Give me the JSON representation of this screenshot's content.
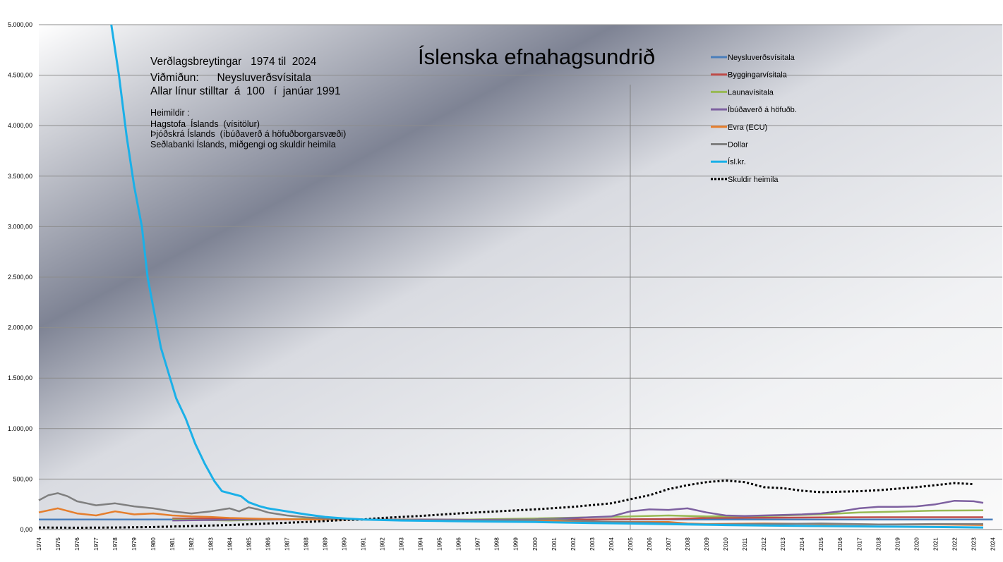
{
  "chart_data": {
    "type": "line",
    "title": "Íslenska efnahagsundrið",
    "info_lines": [
      "Verðlagsbreytingar   1974 til  2024",
      "Viðmiðun:      Neysluverðsvísitala",
      "Allar línur stilltar  á  100   í  janúar 1991"
    ],
    "sources": [
      "Heimildir :",
      "Hagstofa  Íslands  (vísitölur)",
      "Þjóðskrá Íslands  (íbúðaverð á höfuðborgarsvæði)",
      "Seðlabanki Íslands, miðgengi og skuldir heimila"
    ],
    "ylim": [
      0,
      5000
    ],
    "yticks": [
      "0,00",
      "500,00",
      "1.000,00",
      "1.500,00",
      "2.000,00",
      "2.500,00",
      "3.000,00",
      "3.500,00",
      "4.000,00",
      "4.500,00",
      "5.000,00"
    ],
    "xlim": [
      1974,
      2024.5
    ],
    "xticks": [
      "1974",
      "1975",
      "1976",
      "1977",
      "1978",
      "1979",
      "1980",
      "1981",
      "1982",
      "1983",
      "1984",
      "1985",
      "1986",
      "1987",
      "1988",
      "1989",
      "1990",
      "1991",
      "1992",
      "1993",
      "1994",
      "1995",
      "1996",
      "1997",
      "1998",
      "1999",
      "2000",
      "2001",
      "2002",
      "2003",
      "2004",
      "2005",
      "2006",
      "2007",
      "2008",
      "2009",
      "2010",
      "2011",
      "2012",
      "2013",
      "2014",
      "2015",
      "2016",
      "2017",
      "2018",
      "2019",
      "2020",
      "2021",
      "2022",
      "2023",
      "2024"
    ],
    "marker_line_x": 2005,
    "series": [
      {
        "name": "Neysluverðsvísitala",
        "color": "#4a7ebb",
        "style": "solid",
        "points": [
          [
            1974,
            100
          ],
          [
            2024,
            100
          ]
        ]
      },
      {
        "name": "Byggingarvísitala",
        "color": "#be4b48",
        "style": "solid",
        "points": [
          [
            1981,
            110
          ],
          [
            1985,
            105
          ],
          [
            1990,
            100
          ],
          [
            1995,
            98
          ],
          [
            2000,
            97
          ],
          [
            2005,
            102
          ],
          [
            2007,
            105
          ],
          [
            2009,
            115
          ],
          [
            2012,
            118
          ],
          [
            2015,
            120
          ],
          [
            2018,
            122
          ],
          [
            2021,
            122
          ],
          [
            2023.5,
            122
          ]
        ]
      },
      {
        "name": "Launavísitala",
        "color": "#98b954",
        "style": "solid",
        "points": [
          [
            1981,
            100
          ],
          [
            1984,
            90
          ],
          [
            1988,
            105
          ],
          [
            1991,
            100
          ],
          [
            1995,
            95
          ],
          [
            2000,
            110
          ],
          [
            2005,
            130
          ],
          [
            2007,
            140
          ],
          [
            2009,
            130
          ],
          [
            2012,
            135
          ],
          [
            2015,
            150
          ],
          [
            2017,
            170
          ],
          [
            2019,
            178
          ],
          [
            2021,
            188
          ],
          [
            2023.5,
            190
          ]
        ]
      },
      {
        "name": "Íbúðaverð á höfuðb.",
        "color": "#7d60a0",
        "style": "solid",
        "points": [
          [
            1981,
            90
          ],
          [
            1985,
            100
          ],
          [
            1990,
            100
          ],
          [
            1995,
            95
          ],
          [
            2000,
            100
          ],
          [
            2004,
            130
          ],
          [
            2005,
            180
          ],
          [
            2006,
            200
          ],
          [
            2007,
            195
          ],
          [
            2008,
            210
          ],
          [
            2009,
            170
          ],
          [
            2010,
            140
          ],
          [
            2011,
            135
          ],
          [
            2012,
            140
          ],
          [
            2013,
            145
          ],
          [
            2014,
            150
          ],
          [
            2015,
            160
          ],
          [
            2016,
            180
          ],
          [
            2017,
            210
          ],
          [
            2018,
            225
          ],
          [
            2019,
            225
          ],
          [
            2020,
            230
          ],
          [
            2021,
            250
          ],
          [
            2022,
            285
          ],
          [
            2023,
            280
          ],
          [
            2023.5,
            265
          ]
        ]
      },
      {
        "name": "Evra (ECU)",
        "color": "#e57e2d",
        "style": "solid",
        "points": [
          [
            1974,
            170
          ],
          [
            1975,
            210
          ],
          [
            1976,
            160
          ],
          [
            1977,
            140
          ],
          [
            1978,
            180
          ],
          [
            1979,
            150
          ],
          [
            1980,
            160
          ],
          [
            1981,
            140
          ],
          [
            1982,
            130
          ],
          [
            1983,
            125
          ],
          [
            1984,
            115
          ],
          [
            1985,
            110
          ],
          [
            1986,
            105
          ],
          [
            1988,
            100
          ],
          [
            1991,
            100
          ],
          [
            1993,
            95
          ],
          [
            1995,
            90
          ],
          [
            1997,
            85
          ],
          [
            2000,
            80
          ],
          [
            2001,
            85
          ],
          [
            2002,
            80
          ],
          [
            2005,
            75
          ],
          [
            2007,
            75
          ],
          [
            2008,
            60
          ],
          [
            2009,
            55
          ],
          [
            2012,
            60
          ],
          [
            2015,
            55
          ],
          [
            2018,
            50
          ],
          [
            2021,
            50
          ],
          [
            2023.5,
            45
          ]
        ]
      },
      {
        "name": "Dollar",
        "color": "#7f7f7f",
        "style": "solid",
        "points": [
          [
            1974,
            290
          ],
          [
            1974.5,
            340
          ],
          [
            1975,
            360
          ],
          [
            1975.5,
            330
          ],
          [
            1976,
            280
          ],
          [
            1977,
            240
          ],
          [
            1978,
            260
          ],
          [
            1979,
            230
          ],
          [
            1980,
            210
          ],
          [
            1981,
            180
          ],
          [
            1982,
            160
          ],
          [
            1983,
            180
          ],
          [
            1984,
            210
          ],
          [
            1984.5,
            180
          ],
          [
            1985,
            220
          ],
          [
            1985.5,
            200
          ],
          [
            1986,
            170
          ],
          [
            1987,
            140
          ],
          [
            1988,
            120
          ],
          [
            1989,
            110
          ],
          [
            1990,
            105
          ],
          [
            1991,
            100
          ],
          [
            1993,
            95
          ],
          [
            1995,
            90
          ],
          [
            1997,
            90
          ],
          [
            2000,
            95
          ],
          [
            2001,
            105
          ],
          [
            2002,
            90
          ],
          [
            2004,
            75
          ],
          [
            2006,
            70
          ],
          [
            2008,
            55
          ],
          [
            2009,
            50
          ],
          [
            2012,
            55
          ],
          [
            2015,
            60
          ],
          [
            2018,
            50
          ],
          [
            2021,
            55
          ],
          [
            2023.5,
            55
          ]
        ]
      },
      {
        "name": "Ísl.kr.",
        "color": "#1ab0e8",
        "style": "solid",
        "points": [
          [
            1977.8,
            5000
          ],
          [
            1978.2,
            4500
          ],
          [
            1978.6,
            3900
          ],
          [
            1979,
            3400
          ],
          [
            1979.4,
            3000
          ],
          [
            1979.7,
            2500
          ],
          [
            1980,
            2200
          ],
          [
            1980.4,
            1800
          ],
          [
            1980.8,
            1550
          ],
          [
            1981.2,
            1300
          ],
          [
            1981.7,
            1100
          ],
          [
            1982.2,
            850
          ],
          [
            1982.7,
            650
          ],
          [
            1983.2,
            480
          ],
          [
            1983.6,
            380
          ],
          [
            1984,
            360
          ],
          [
            1984.6,
            330
          ],
          [
            1985,
            270
          ],
          [
            1985.6,
            230
          ],
          [
            1986,
            210
          ],
          [
            1987,
            180
          ],
          [
            1988,
            150
          ],
          [
            1989,
            125
          ],
          [
            1990,
            110
          ],
          [
            1991,
            100
          ],
          [
            1993,
            90
          ],
          [
            1995,
            85
          ],
          [
            1997,
            80
          ],
          [
            2000,
            75
          ],
          [
            2003,
            65
          ],
          [
            2005,
            60
          ],
          [
            2008,
            50
          ],
          [
            2010,
            45
          ],
          [
            2012,
            40
          ],
          [
            2015,
            35
          ],
          [
            2018,
            30
          ],
          [
            2021,
            25
          ],
          [
            2023.5,
            20
          ]
        ]
      },
      {
        "name": "Skuldir heimila",
        "color": "#000000",
        "style": "dotted",
        "points": [
          [
            1974,
            20
          ],
          [
            1976,
            18
          ],
          [
            1978,
            20
          ],
          [
            1980,
            25
          ],
          [
            1982,
            35
          ],
          [
            1984,
            45
          ],
          [
            1986,
            60
          ],
          [
            1988,
            75
          ],
          [
            1990,
            95
          ],
          [
            1991,
            100
          ],
          [
            1992,
            115
          ],
          [
            1994,
            135
          ],
          [
            1996,
            160
          ],
          [
            1998,
            180
          ],
          [
            2000,
            200
          ],
          [
            2002,
            225
          ],
          [
            2004,
            260
          ],
          [
            2005,
            300
          ],
          [
            2006,
            340
          ],
          [
            2007,
            400
          ],
          [
            2008,
            440
          ],
          [
            2009,
            470
          ],
          [
            2010,
            485
          ],
          [
            2011,
            470
          ],
          [
            2012,
            420
          ],
          [
            2013,
            410
          ],
          [
            2014,
            385
          ],
          [
            2015,
            370
          ],
          [
            2016,
            375
          ],
          [
            2017,
            380
          ],
          [
            2018,
            390
          ],
          [
            2019,
            405
          ],
          [
            2020,
            420
          ],
          [
            2021,
            440
          ],
          [
            2022,
            460
          ],
          [
            2023,
            450
          ]
        ]
      }
    ]
  }
}
